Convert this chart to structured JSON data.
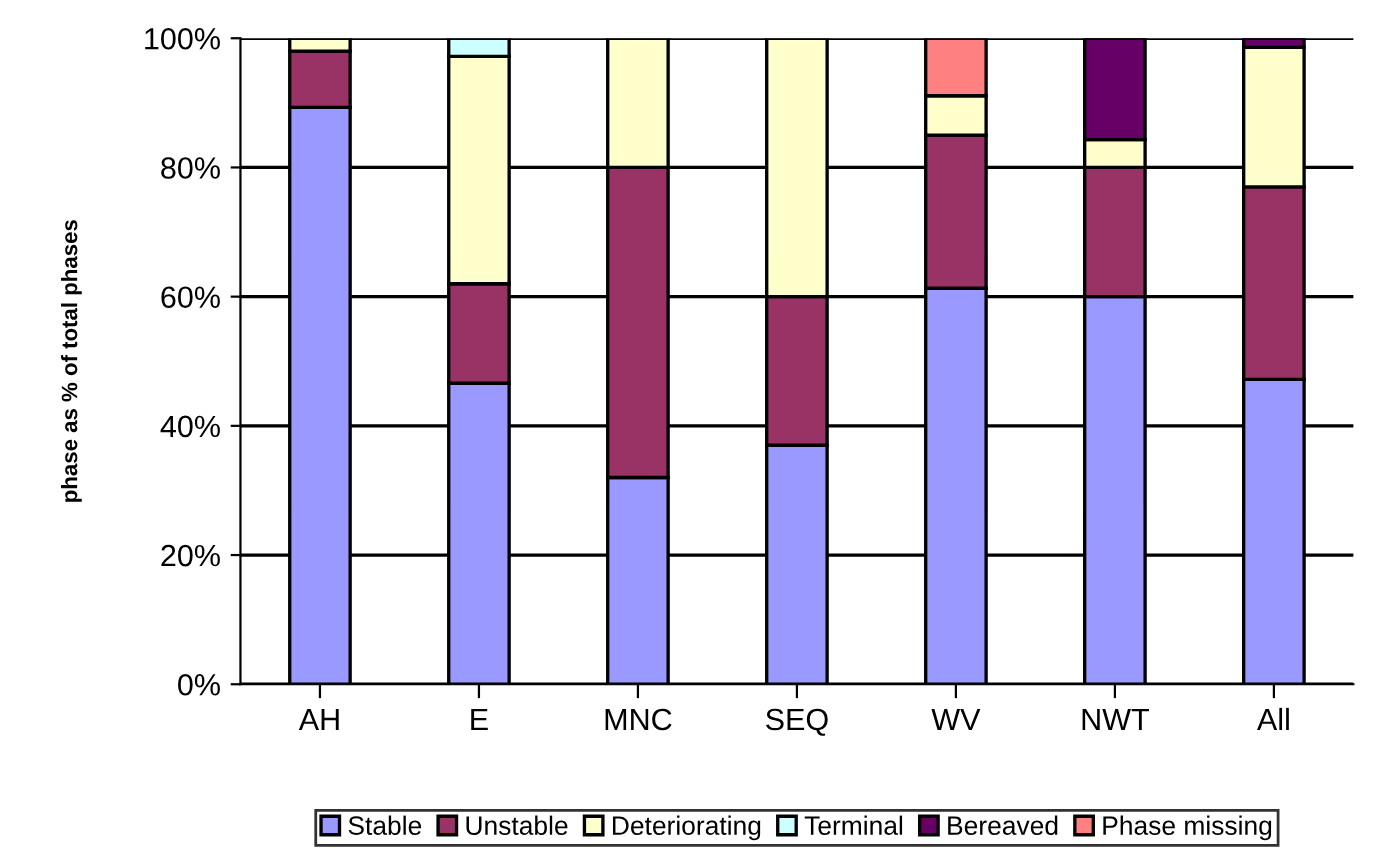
{
  "chart_data": {
    "type": "bar",
    "stacked": true,
    "ylabel": "phase as % of total phases",
    "categories": [
      "AH",
      "E",
      "MNC",
      "SEQ",
      "WV",
      "NWT",
      "All"
    ],
    "series": [
      {
        "name": "Stable",
        "color": "#9999ff",
        "values": [
          89.3,
          46.6,
          32,
          37,
          61.3,
          60,
          47.2
        ]
      },
      {
        "name": "Unstable",
        "color": "#993366",
        "values": [
          8.7,
          15.4,
          48,
          23,
          23.7,
          20,
          29.8
        ]
      },
      {
        "name": "Deteriorating",
        "color": "#ffffcc",
        "values": [
          2,
          35.2,
          20,
          40,
          6.1,
          4.3,
          21.6
        ]
      },
      {
        "name": "Terminal",
        "color": "#ccffff",
        "values": [
          null,
          2.8,
          null,
          null,
          null,
          null,
          null
        ]
      },
      {
        "name": "Bereaved",
        "color": "#660066",
        "values": [
          null,
          null,
          null,
          null,
          null,
          15.7,
          1.4
        ]
      },
      {
        "name": "Phase missing",
        "color": "#ff8080",
        "values": [
          null,
          null,
          null,
          null,
          8.9,
          null,
          null
        ]
      }
    ],
    "ylim": [
      0,
      100
    ],
    "yticks": [
      {
        "value": 0,
        "label": "0%"
      },
      {
        "value": 20,
        "label": "20%"
      },
      {
        "value": 40,
        "label": "40%"
      },
      {
        "value": 60,
        "label": "60%"
      },
      {
        "value": 80,
        "label": "80%"
      },
      {
        "value": 100,
        "label": "100%"
      }
    ],
    "grid": "y",
    "legend": "bottom"
  }
}
